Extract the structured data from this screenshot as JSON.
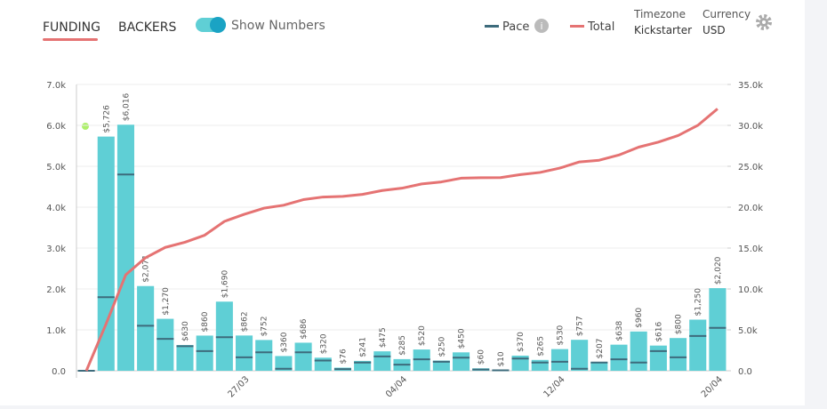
{
  "tabs": [
    "FUNDING",
    "BACKERS"
  ],
  "toggle_label": "Show Numbers",
  "timezone": {
    "label": "Timezone",
    "value": "Kickstarter"
  },
  "currency": {
    "label": "Currency",
    "value": "USD"
  },
  "chart_data": {
    "type": "bar",
    "categories": [
      null,
      null,
      null,
      null,
      null,
      null,
      null,
      null,
      "27/03",
      null,
      null,
      null,
      null,
      null,
      null,
      null,
      "04/04",
      null,
      null,
      null,
      null,
      null,
      null,
      null,
      "12/04",
      null,
      null,
      null,
      null,
      null,
      null,
      null,
      "20/04"
    ],
    "values": [
      0,
      5726,
      6016,
      2071,
      1270,
      630,
      860,
      1690,
      862,
      752,
      360,
      686,
      320,
      76,
      241,
      475,
      285,
      520,
      250,
      450,
      60,
      10,
      370,
      265,
      530,
      757,
      207,
      638,
      960,
      616,
      800,
      1250,
      2020
    ],
    "value_labels": [
      null,
      "$5,726",
      "$6,016",
      "$2,071",
      "$1,270",
      "$630",
      "$860",
      "$1,690",
      "$862",
      "$752",
      "$360",
      "$686",
      "$320",
      "$76",
      "$241",
      "$475",
      "$285",
      "$520",
      "$250",
      "$450",
      "$60",
      "$10",
      "$370",
      "$265",
      "$530",
      "$757",
      "$207",
      "$638",
      "$960",
      "$616",
      "$800",
      "$1,250",
      "$2,020"
    ],
    "color": "#5fcfd5",
    "series": [
      {
        "name": "Pace",
        "color": "#3d6b7c",
        "values": [
          0,
          1800,
          4800,
          1100,
          780,
          600,
          480,
          820,
          330,
          450,
          50,
          450,
          250,
          40,
          200,
          350,
          150,
          280,
          220,
          320,
          30,
          10,
          300,
          200,
          220,
          50,
          200,
          280,
          200,
          480,
          330,
          850,
          1050
        ]
      },
      {
        "name": "Total",
        "color": "#e57373",
        "axis": "y2",
        "values": [
          0,
          5726,
          11742,
          13813,
          15083,
          15713,
          16573,
          18263,
          19125,
          19877,
          20237,
          20923,
          21243,
          21319,
          21560,
          22035,
          22320,
          22840,
          23090,
          23540,
          23600,
          23610,
          23980,
          24245,
          24775,
          25532,
          25739,
          26377,
          27337,
          27953,
          28753,
          30003,
          32023
        ]
      }
    ],
    "ylim": [
      0,
      7000
    ],
    "yticks": [
      {
        "value": 0,
        "label": "0.0"
      },
      {
        "value": 1000,
        "label": "1.0k"
      },
      {
        "value": 2000,
        "label": "2.0k"
      },
      {
        "value": 3000,
        "label": "3.0k"
      },
      {
        "value": 4000,
        "label": "4.0k"
      },
      {
        "value": 5000,
        "label": "5.0k"
      },
      {
        "value": 6000,
        "label": "6.0k"
      },
      {
        "value": 7000,
        "label": "7.0k"
      }
    ],
    "y2lim": [
      0,
      35000
    ],
    "y2ticks": [
      {
        "value": 0,
        "label": "0.0"
      },
      {
        "value": 5000,
        "label": "5.0k"
      },
      {
        "value": 10000,
        "label": "10.0k"
      },
      {
        "value": 15000,
        "label": "15.0k"
      },
      {
        "value": 20000,
        "label": "20.0k"
      },
      {
        "value": 25000,
        "label": "25.0k"
      },
      {
        "value": 30000,
        "label": "30.0k"
      },
      {
        "value": 35000,
        "label": "35.0k"
      }
    ],
    "grid": true
  }
}
